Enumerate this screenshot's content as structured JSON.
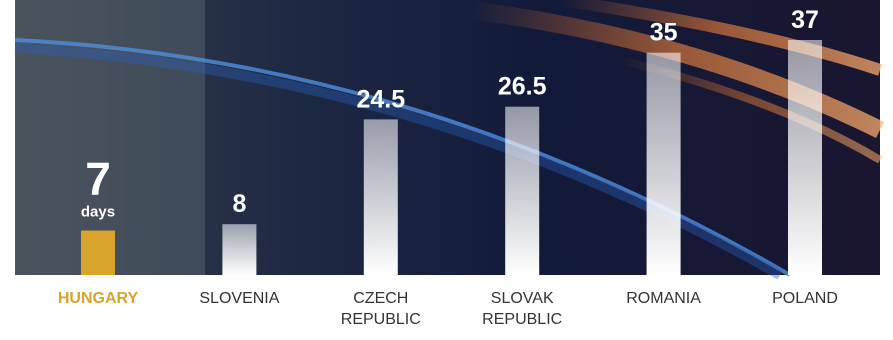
{
  "chart_data": {
    "type": "bar",
    "categories": [
      "HUNGARY",
      "SLOVENIA",
      "CZECH REPUBLIC",
      "SLOVAK REPUBLIC",
      "ROMANIA",
      "POLAND"
    ],
    "values": [
      7,
      8,
      24.5,
      26.5,
      35,
      37
    ],
    "colors": [
      "#d9a42c",
      "#ffffff",
      "#ffffff",
      "#ffffff",
      "#ffffff",
      "#ffffff"
    ],
    "label_colors": [
      "#d9a42c",
      "#333333",
      "#333333",
      "#333333",
      "#333333",
      "#333333"
    ],
    "first_value_unit": "days"
  }
}
